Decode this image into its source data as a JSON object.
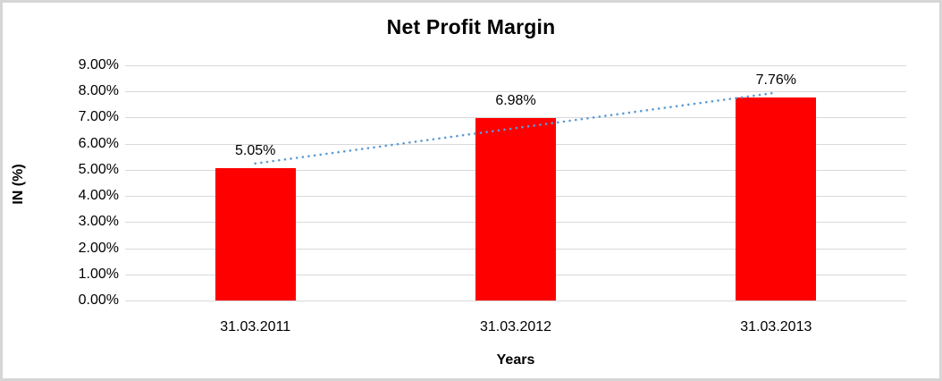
{
  "chart_data": {
    "type": "bar",
    "title": "Net Profit Margin",
    "xlabel": "Years",
    "ylabel": "IN (%)",
    "categories": [
      "31.03.2011",
      "31.03.2012",
      "31.03.2013"
    ],
    "values": [
      5.05,
      6.98,
      7.76
    ],
    "data_labels": [
      "5.05%",
      "6.98%",
      "7.76%"
    ],
    "ylim": [
      0,
      9
    ],
    "ytick_step": 1,
    "ytick_labels": [
      "0.00%",
      "1.00%",
      "2.00%",
      "3.00%",
      "4.00%",
      "5.00%",
      "6.00%",
      "7.00%",
      "8.00%",
      "9.00%"
    ],
    "grid": true,
    "legend": "none",
    "bar_color": "#ff0000",
    "gridline_color": "#d9d9d9",
    "text_color": "#000000",
    "background_color": "#ffffff",
    "border_color": "#d6d6d6",
    "trendline": {
      "type": "linear",
      "style": "dotted",
      "color": "#5b9bd5"
    }
  }
}
